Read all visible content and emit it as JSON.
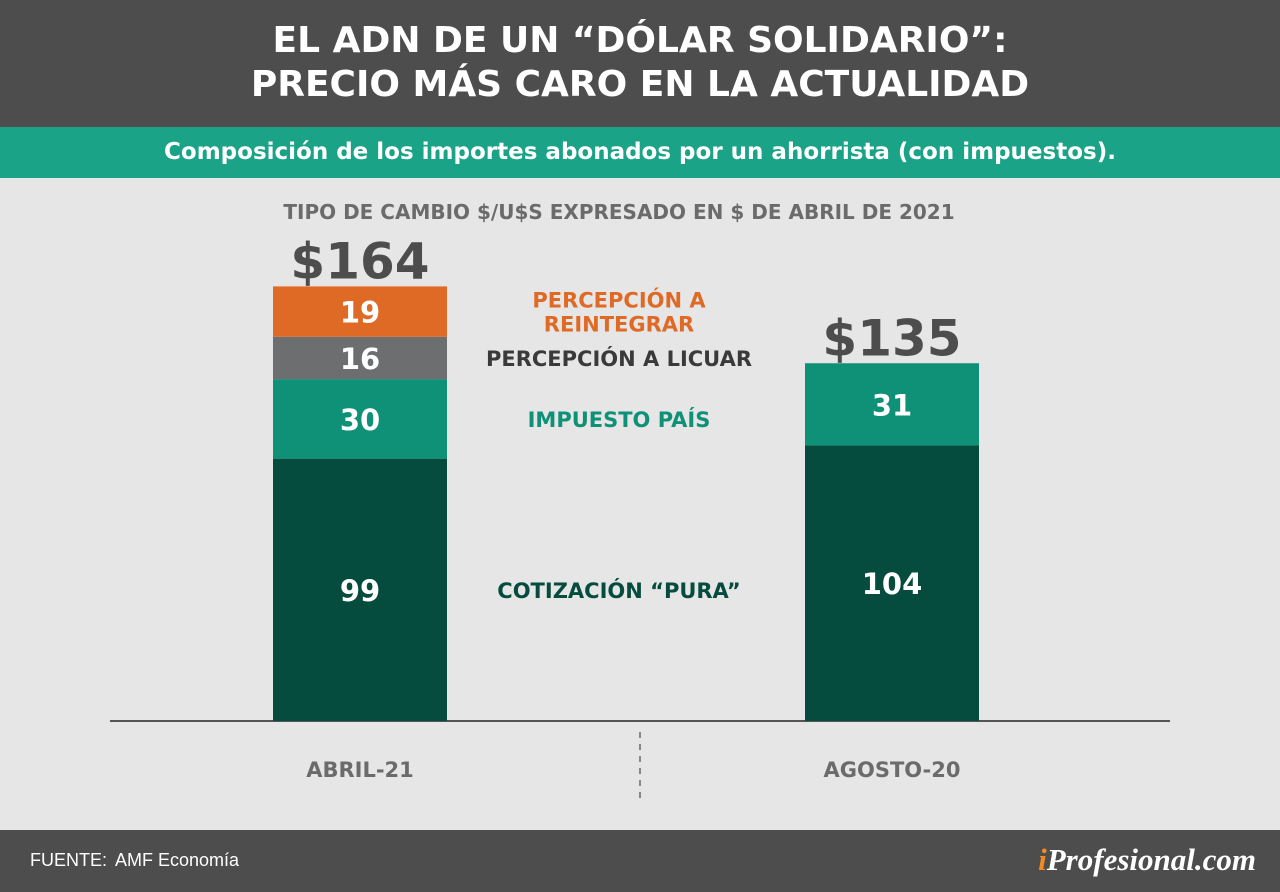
{
  "header": {
    "title_line1": "EL ADN DE UN “DÓLAR SOLIDARIO”:",
    "title_line2": "PRECIO MÁS CARO EN LA ACTUALIDAD"
  },
  "subtitle": "Composición de los importes abonados por un ahorrista (con impuestos).",
  "footer": {
    "source_label": "FUENTE:",
    "source_value": "AMF Economía",
    "brand_accent": "i",
    "brand_rest": "Profesional.com"
  },
  "colors": {
    "header_bg": "#4d4d4d",
    "subtitle_bg": "#1aa386",
    "page_bg": "#e6e6e6",
    "cotizacion": "#064c3e",
    "impuesto": "#0f9177",
    "licuar": "#6d6e70",
    "reintegrar": "#df6a26",
    "total_text": "#4d4d4d",
    "axis_text": "#6b6b6b",
    "brand_accent": "#f08a24"
  },
  "chart_data": {
    "type": "bar",
    "stacked": true,
    "title": "TIPO DE CAMBIO $/U$S EXPRESADO EN $ DE ABRIL DE 2021",
    "categories": [
      "ABRIL-21",
      "AGOSTO-20"
    ],
    "totals": [
      "$164",
      "$135"
    ],
    "series": [
      {
        "name": "COTIZACIÓN “PURA”",
        "key": "cotizacion",
        "values": [
          99,
          104
        ]
      },
      {
        "name": "IMPUESTO PAÍS",
        "key": "impuesto",
        "values": [
          30,
          31
        ]
      },
      {
        "name": "PERCEPCIÓN A LICUAR",
        "key": "licuar",
        "values": [
          16,
          null
        ]
      },
      {
        "name_lines": [
          "PERCEPCIÓN A",
          "REINTEGRAR"
        ],
        "key": "reintegrar",
        "values": [
          19,
          null
        ]
      }
    ],
    "ylim": [
      0,
      164
    ],
    "grid": false,
    "legend": "center"
  }
}
